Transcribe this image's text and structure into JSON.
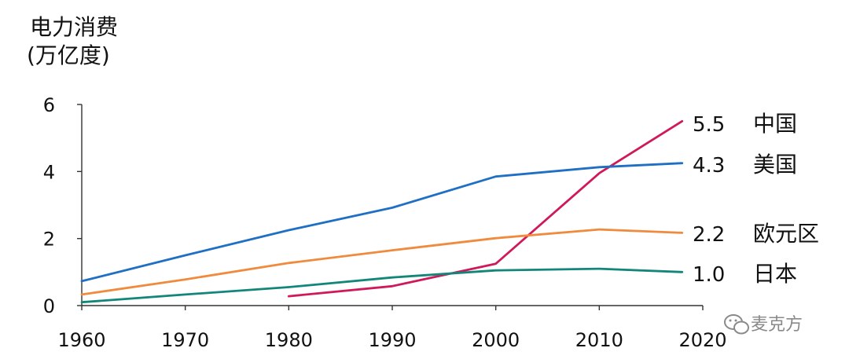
{
  "chart_data": {
    "type": "line",
    "ylabel_lines": [
      "电力消费",
      "(万亿度)"
    ],
    "xlim": [
      1960,
      2020
    ],
    "ylim": [
      0,
      6
    ],
    "x_ticks": [
      1960,
      1970,
      1980,
      1990,
      2000,
      2010,
      2020
    ],
    "y_ticks": [
      0,
      2,
      4,
      6
    ],
    "grid": false,
    "legend": "end-of-line labels",
    "series": [
      {
        "name": "中国",
        "end_label": "5.5",
        "color": "#d0195a",
        "points": [
          [
            1980,
            0.28
          ],
          [
            1990,
            0.58
          ],
          [
            2000,
            1.25
          ],
          [
            2010,
            3.95
          ],
          [
            2018,
            5.5
          ]
        ]
      },
      {
        "name": "美国",
        "end_label": "4.3",
        "color": "#1f6fc5",
        "points": [
          [
            1960,
            0.73
          ],
          [
            1970,
            1.5
          ],
          [
            1980,
            2.25
          ],
          [
            1990,
            2.92
          ],
          [
            2000,
            3.85
          ],
          [
            2010,
            4.13
          ],
          [
            2018,
            4.25
          ]
        ]
      },
      {
        "name": "欧元区",
        "end_label": "2.2",
        "color": "#f08a3c",
        "points": [
          [
            1960,
            0.33
          ],
          [
            1970,
            0.78
          ],
          [
            1980,
            1.27
          ],
          [
            1990,
            1.65
          ],
          [
            2000,
            2.01
          ],
          [
            2010,
            2.27
          ],
          [
            2018,
            2.17
          ]
        ]
      },
      {
        "name": "日本",
        "end_label": "1.0",
        "color": "#13867a",
        "points": [
          [
            1960,
            0.1
          ],
          [
            1970,
            0.33
          ],
          [
            1980,
            0.55
          ],
          [
            1990,
            0.84
          ],
          [
            2000,
            1.05
          ],
          [
            2010,
            1.1
          ],
          [
            2018,
            1.0
          ]
        ]
      }
    ]
  },
  "watermark": {
    "text": "麦克方",
    "icon": "wechat-icon",
    "color": "#8a8a8a"
  }
}
